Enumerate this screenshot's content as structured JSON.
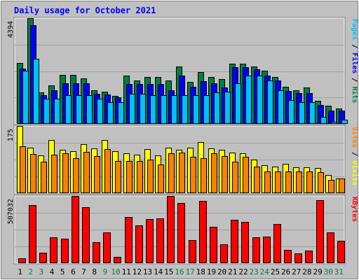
{
  "title": "Daily usage for October 2021",
  "colors": {
    "title": "#0000ff",
    "background": "#c0c0c0",
    "frame": "#ececec",
    "grid": "#a0a0a0",
    "hits": "#008040",
    "files": "#0000ff",
    "pages": "#00c0ff",
    "visits": "#ffff00",
    "sites": "#ff8000",
    "kbytes": "#ff0000",
    "weekday": "#000000",
    "weekend": "#008040"
  },
  "legends": {
    "top": [
      {
        "label": "Pages",
        "color": "#00c0ff"
      },
      {
        "label": " / ",
        "color": "#000000"
      },
      {
        "label": "Files",
        "color": "#0000ff"
      },
      {
        "label": " / ",
        "color": "#000000"
      },
      {
        "label": "Hits",
        "color": "#008040"
      }
    ],
    "middle": [
      {
        "label": "Sites",
        "color": "#ff8000"
      },
      {
        "label": " / ",
        "color": "#000000"
      },
      {
        "label": "Visits",
        "color": "#ffff00"
      }
    ],
    "bottom": [
      {
        "label": "KBytes",
        "color": "#ff0000"
      }
    ]
  },
  "chart_data": [
    {
      "type": "bar",
      "title": "Daily usage for October 2021",
      "categories": [
        "1",
        "2",
        "3",
        "4",
        "5",
        "6",
        "7",
        "8",
        "9",
        "10",
        "11",
        "12",
        "13",
        "14",
        "15",
        "16",
        "17",
        "18",
        "19",
        "20",
        "21",
        "22",
        "23",
        "24",
        "25",
        "26",
        "27",
        "28",
        "29",
        "30",
        "31"
      ],
      "weekend_days": [
        "2",
        "3",
        "9",
        "10",
        "16",
        "17",
        "23",
        "24",
        "30",
        "31"
      ],
      "ymax_label": "4394",
      "ylim": [
        0,
        4394
      ],
      "series": [
        {
          "name": "Hits",
          "values": [
            2520,
            4394,
            1300,
            1600,
            2050,
            2050,
            1900,
            1400,
            1350,
            1150,
            2020,
            1800,
            1950,
            1950,
            1800,
            2400,
            1750,
            2160,
            1950,
            1850,
            2500,
            2500,
            2400,
            2200,
            1950,
            1550,
            1400,
            1500,
            950,
            750,
            650
          ]
        },
        {
          "name": "Files",
          "values": [
            2300,
            4100,
            1200,
            1400,
            1680,
            1680,
            1680,
            1250,
            1220,
            1100,
            1650,
            1650,
            1650,
            1650,
            1400,
            2020,
            1550,
            1780,
            1700,
            1500,
            2350,
            2350,
            2280,
            2000,
            1800,
            1380,
            1270,
            1280,
            800,
            540,
            540
          ]
        },
        {
          "name": "Pages",
          "values": [
            2200,
            2700,
            1050,
            1050,
            1180,
            1180,
            1200,
            1050,
            900,
            900,
            1250,
            1250,
            1200,
            1200,
            1200,
            1200,
            1200,
            1200,
            1300,
            1350,
            1700,
            2000,
            2000,
            1800,
            1400,
            1000,
            900,
            900,
            300,
            100,
            180
          ]
        }
      ]
    },
    {
      "type": "bar",
      "categories": [
        "1",
        "2",
        "3",
        "4",
        "5",
        "6",
        "7",
        "8",
        "9",
        "10",
        "11",
        "12",
        "13",
        "14",
        "15",
        "16",
        "17",
        "18",
        "19",
        "20",
        "21",
        "22",
        "23",
        "24",
        "25",
        "26",
        "27",
        "28",
        "29",
        "30",
        "31"
      ],
      "ymax_label": "175",
      "ylim": [
        0,
        175
      ],
      "series": [
        {
          "name": "Visits",
          "values": [
            175,
            118,
            99,
            138,
            113,
            110,
            128,
            117,
            139,
            110,
            104,
            101,
            115,
            98,
            119,
            113,
            119,
            133,
            117,
            113,
            106,
            104,
            88,
            73,
            70,
            77,
            67,
            67,
            66,
            48,
            39
          ]
        },
        {
          "name": "Sites",
          "values": [
            122,
            102,
            82,
            101,
            104,
            92,
            108,
            97,
            115,
            83,
            83,
            83,
            88,
            75,
            104,
            106,
            95,
            91,
            103,
            97,
            82,
            95,
            70,
            56,
            56,
            56,
            57,
            57,
            54,
            35,
            38
          ]
        }
      ]
    },
    {
      "type": "bar",
      "categories": [
        "1",
        "2",
        "3",
        "4",
        "5",
        "6",
        "7",
        "8",
        "9",
        "10",
        "11",
        "12",
        "13",
        "14",
        "15",
        "16",
        "17",
        "18",
        "19",
        "20",
        "21",
        "22",
        "23",
        "24",
        "25",
        "26",
        "27",
        "28",
        "29",
        "30",
        "31"
      ],
      "ymax_label": "507032",
      "ylim": [
        0,
        507032
      ],
      "series": [
        {
          "name": "KBytes",
          "values": [
            37000,
            440000,
            78000,
            195000,
            185000,
            506000,
            425000,
            158000,
            235000,
            47000,
            350000,
            285000,
            335000,
            340000,
            507032,
            455000,
            175000,
            470000,
            275000,
            140000,
            330000,
            310000,
            195000,
            200000,
            298000,
            100000,
            75000,
            95000,
            475000,
            235000,
            168000
          ]
        }
      ]
    }
  ]
}
